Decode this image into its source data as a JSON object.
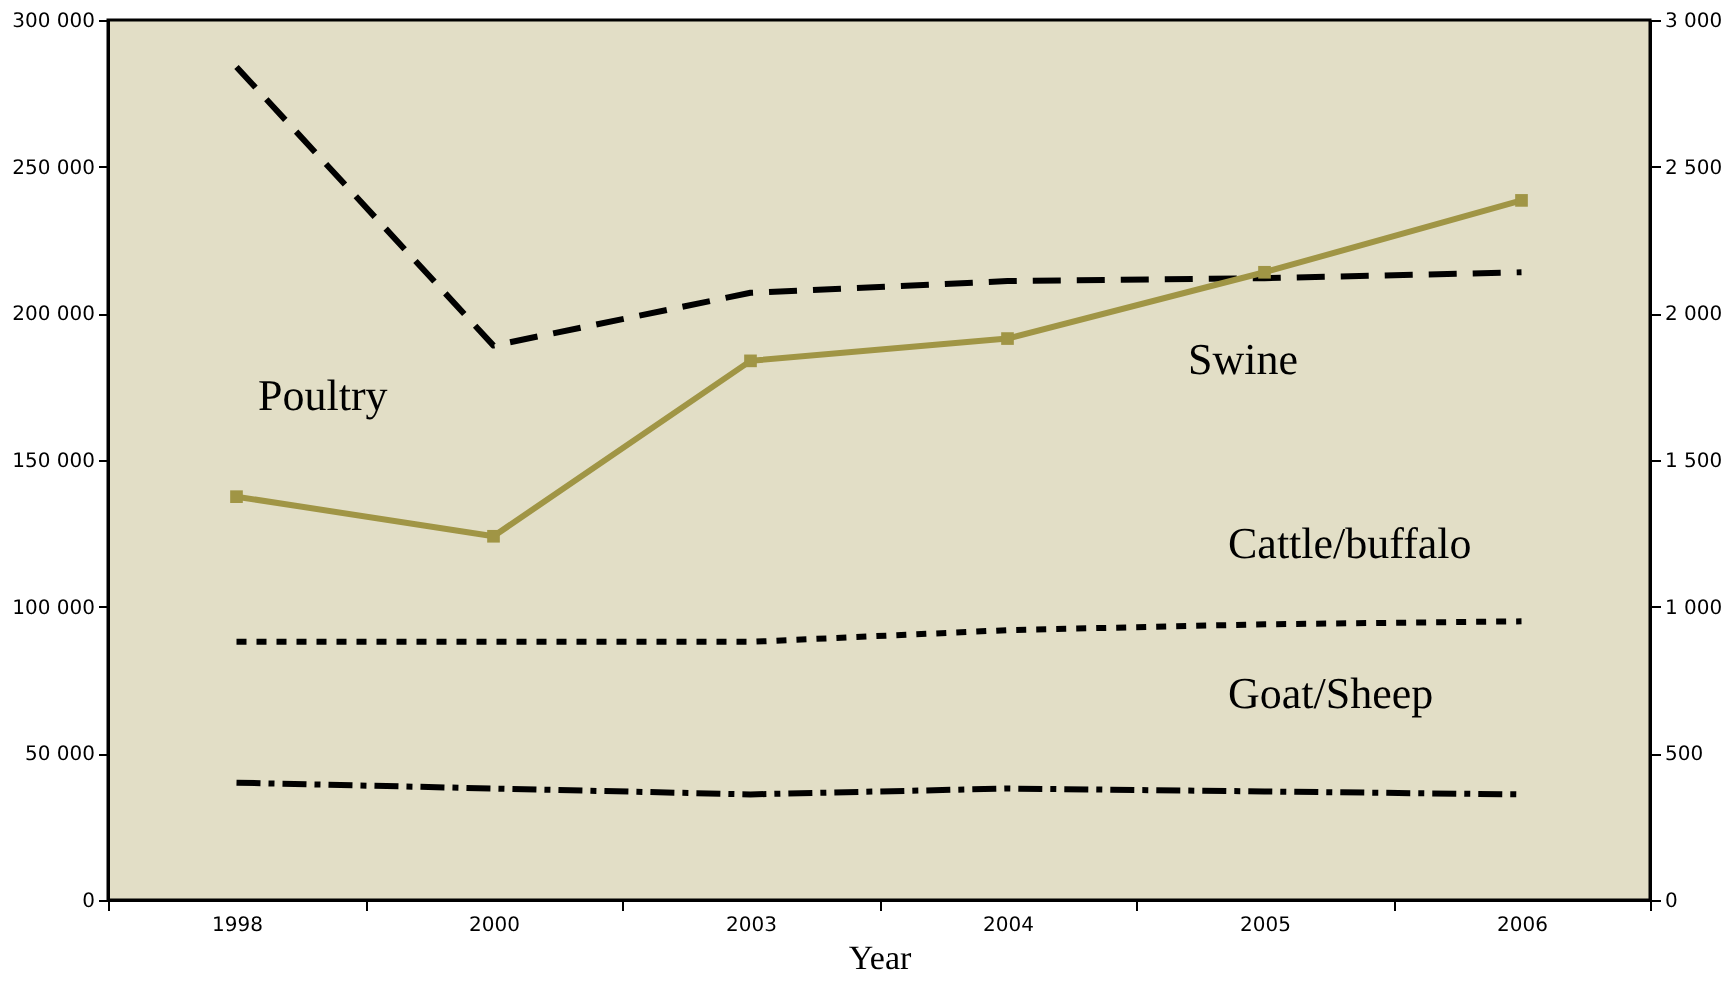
{
  "chart_data": {
    "type": "line",
    "xlabel": "Year",
    "annotations": [
      "Poultry",
      "Swine",
      "Cattle/buffalo",
      "Goat/Sheep"
    ],
    "categories": [
      "1998",
      "2000",
      "2003",
      "2004",
      "2005",
      "2006"
    ],
    "ylim": [
      0,
      300000
    ],
    "yticks": [
      {
        "value": 0,
        "label": "0"
      },
      {
        "value": 50000,
        "label": "50 000"
      },
      {
        "value": 100000,
        "label": "100 000"
      },
      {
        "value": 150000,
        "label": "150 000"
      },
      {
        "value": 200000,
        "label": "200 000"
      },
      {
        "value": 250000,
        "label": "250 000"
      },
      {
        "value": 300000,
        "label": "300 000"
      }
    ],
    "y2lim": [
      0,
      3000
    ],
    "y2ticks": [
      {
        "value": 0,
        "label": "0"
      },
      {
        "value": 500,
        "label": "500"
      },
      {
        "value": 1000,
        "label": "1 000"
      },
      {
        "value": 1500,
        "label": "1 500"
      },
      {
        "value": 2000,
        "label": "2 000"
      },
      {
        "value": 2500,
        "label": "2 500"
      },
      {
        "value": 3000,
        "label": "3 000"
      }
    ],
    "grid": false,
    "series": [
      {
        "color": "#000000",
        "line_style": "dashed",
        "marker": "none",
        "values": [
          284000,
          189000,
          207000,
          211000,
          212000,
          214000
        ]
      },
      {
        "color": "#a09545",
        "line_style": "solid",
        "marker": "square",
        "values": [
          137500,
          124000,
          183800,
          191400,
          214000,
          238500
        ]
      },
      {
        "color": "#000000",
        "line_style": "dotted",
        "marker": "none",
        "values": [
          88000,
          88000,
          88000,
          92000,
          94000,
          95000
        ]
      },
      {
        "color": "#000000",
        "line_style": "dashed",
        "marker": "none",
        "values": [
          40000,
          38000,
          36000,
          38000,
          37000,
          36000
        ]
      }
    ]
  }
}
